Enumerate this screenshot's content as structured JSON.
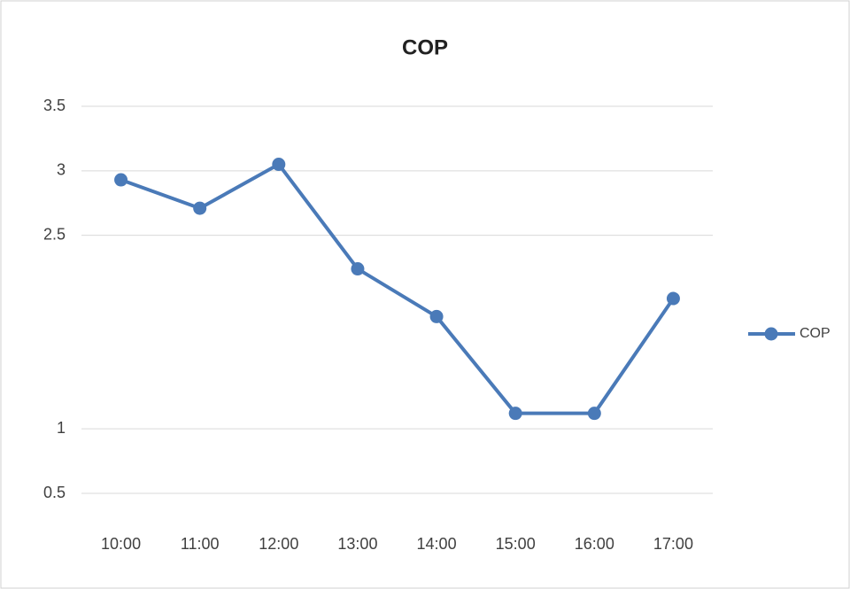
{
  "chart_data": {
    "type": "line",
    "title": "COP",
    "categories": [
      "10:00",
      "11:00",
      "12:00",
      "13:00",
      "14:00",
      "15:00",
      "16:00",
      "17:00"
    ],
    "series": [
      {
        "name": "COP",
        "color": "#4a7ab8",
        "values": [
          2.93,
          2.71,
          3.05,
          2.24,
          1.87,
          1.12,
          1.12,
          2.01
        ]
      }
    ],
    "ylim": [
      0.5,
      3.5
    ],
    "yticks": [
      0.5,
      1,
      2.5,
      3,
      3.5
    ],
    "grid": true,
    "legend": "right"
  }
}
